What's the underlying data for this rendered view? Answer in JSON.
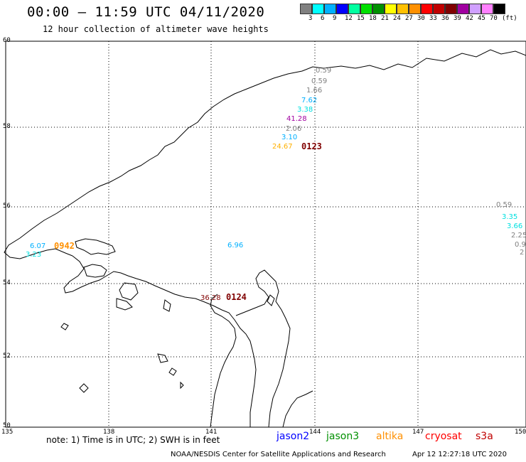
{
  "header": {
    "title": "00:00 – 11:59 UTC 04/11/2020",
    "subtitle": "12 hour collection of altimeter wave heights"
  },
  "colorbar": {
    "colors": [
      "#808080",
      "#00ffff",
      "#00b0ff",
      "#0000ff",
      "#00ffa0",
      "#00e000",
      "#009000",
      "#ffff00",
      "#ffc000",
      "#ff9000",
      "#ff0000",
      "#c00000",
      "#800000",
      "#a000a0",
      "#d0a0ff",
      "#ff80ff",
      "#000000"
    ],
    "labels": [
      "3",
      "6",
      "9",
      "12",
      "15",
      "18",
      "21",
      "24",
      "27",
      "30",
      "33",
      "36",
      "39",
      "42",
      "45",
      "70",
      "(ft)"
    ]
  },
  "axes": {
    "lat_labels": [
      "60",
      "58",
      "56",
      "54",
      "52",
      "50"
    ],
    "lon_labels": [
      "135",
      "138",
      "141",
      "144",
      "147",
      "150"
    ]
  },
  "passes": [
    {
      "time": "0123",
      "color": "#800000"
    },
    {
      "time": "0942",
      "color": "#ff9000"
    },
    {
      "time": "0124",
      "color": "#800000"
    }
  ],
  "wave_heights": [
    {
      "v": "0.59",
      "color": "#808080"
    },
    {
      "v": "0.59",
      "color": "#808080"
    },
    {
      "v": "1.66",
      "color": "#808080"
    },
    {
      "v": "7.62",
      "color": "#00b0ff"
    },
    {
      "v": "3.38",
      "color": "#00e0e0"
    },
    {
      "v": "41.28",
      "color": "#a000a0"
    },
    {
      "v": "2.06",
      "color": "#808080"
    },
    {
      "v": "3.10",
      "color": "#00b0ff"
    },
    {
      "v": "24.67",
      "color": "#ffb000"
    },
    {
      "v": "6.07",
      "color": "#00b0ff"
    },
    {
      "v": "3.23",
      "color": "#00e0e0"
    },
    {
      "v": "6.96",
      "color": "#00b0ff"
    },
    {
      "v": "36.28",
      "color": "#800000"
    },
    {
      "v": "0.59",
      "color": "#808080"
    },
    {
      "v": "3.35",
      "color": "#00e0e0"
    },
    {
      "v": "3.66",
      "color": "#00e0e0"
    },
    {
      "v": "2.25",
      "color": "#808080"
    },
    {
      "v": "0.9",
      "color": "#808080"
    },
    {
      "v": "2",
      "color": "#808080"
    }
  ],
  "footer": {
    "note": "note:  1) Time is in UTC;  2) SWH is in feet",
    "legend": [
      {
        "name": "jason2",
        "color": "#0000ff"
      },
      {
        "name": "jason3",
        "color": "#009000"
      },
      {
        "name": "altika",
        "color": "#ff9000"
      },
      {
        "name": "cryosat",
        "color": "#ff0000"
      },
      {
        "name": "s3a",
        "color": "#c00000"
      }
    ],
    "credit": "NOAA/NESDIS Center for Satellite Applications and Research",
    "timestamp": "Apr 12 12:27:18 UTC 2020"
  }
}
